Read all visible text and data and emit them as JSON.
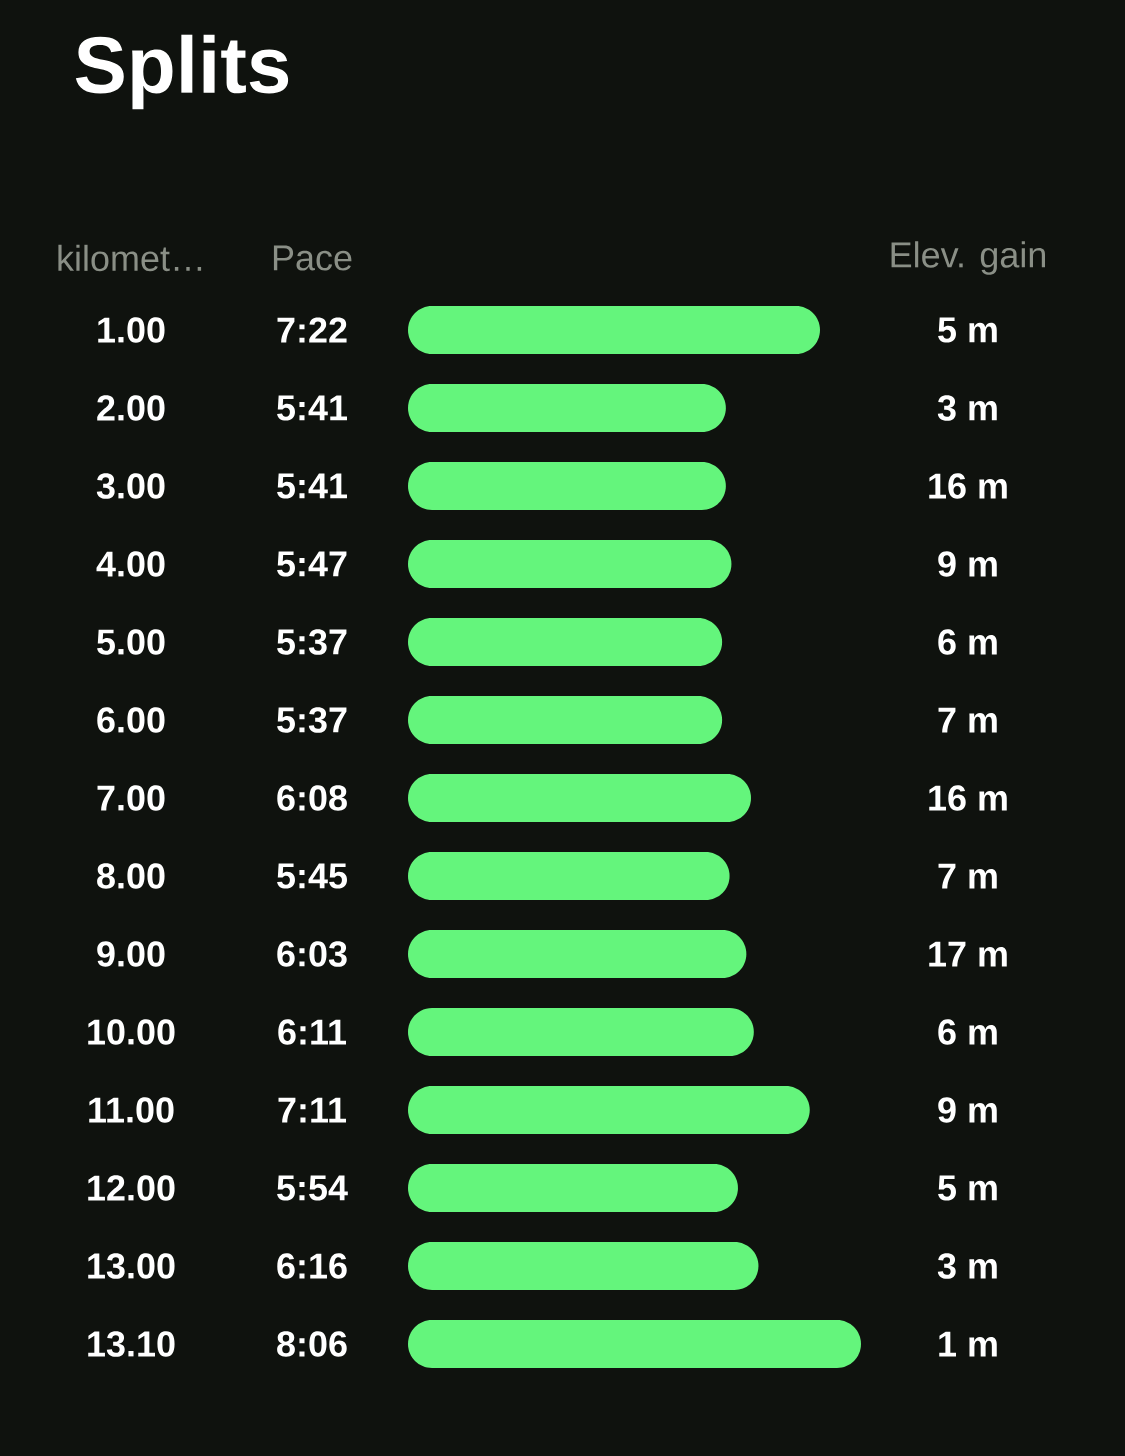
{
  "chart_data": {
    "type": "bar",
    "orientation": "horizontal",
    "title": "Splits",
    "ylabel": "kilomet…",
    "xlabel": "Pace",
    "y2label": "Elev. gain",
    "categories": [
      "1.00",
      "2.00",
      "3.00",
      "4.00",
      "5.00",
      "6.00",
      "7.00",
      "8.00",
      "9.00",
      "10.00",
      "11.00",
      "12.00",
      "13.00",
      "13.10"
    ],
    "values": [
      442,
      341,
      341,
      347,
      337,
      337,
      368,
      345,
      363,
      371,
      431,
      354,
      376,
      486
    ],
    "value_labels": [
      "7:22",
      "5:41",
      "5:41",
      "5:47",
      "5:37",
      "5:37",
      "6:08",
      "5:45",
      "6:03",
      "6:11",
      "7:11",
      "5:54",
      "6:16",
      "8:06"
    ],
    "color": "#64f57c",
    "annotations": [
      "5 m",
      "3 m",
      "16 m",
      "9 m",
      "6 m",
      "7 m",
      "16 m",
      "7 m",
      "17 m",
      "6 m",
      "9 m",
      "5 m",
      "3 m",
      "1 m"
    ]
  }
}
